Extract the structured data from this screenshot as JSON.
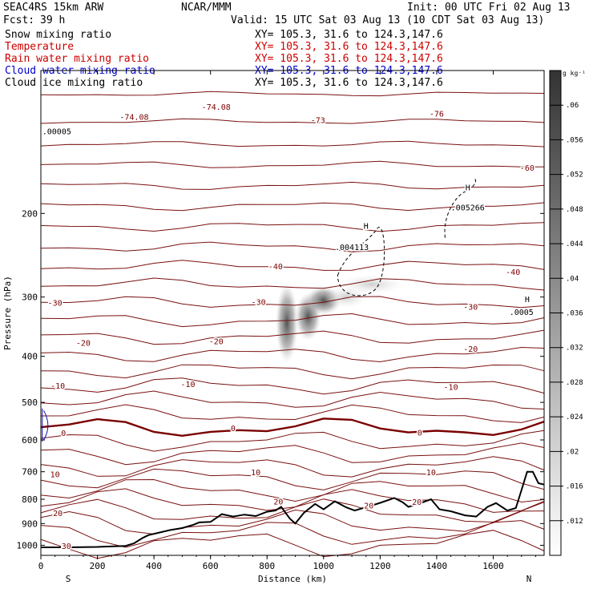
{
  "header": {
    "model": "SEAC4RS 15km ARW",
    "center": "NCAR/MMM",
    "init": "Init: 00 UTC Fri 02 Aug 13",
    "fcst_label": "Fcst:",
    "fcst_value": "39 h",
    "valid": "Valid: 15 UTC Sat 03 Aug 13 (10 CDT Sat 03 Aug 13)"
  },
  "fields": [
    {
      "name": "Snow mixing ratio",
      "xy": "XY= 105.3, 31.6 to 124.3,147.6",
      "color": "#000000"
    },
    {
      "name": "Temperature",
      "xy": "XY= 105.3, 31.6 to 124.3,147.6",
      "color": "#cc0000"
    },
    {
      "name": "Rain water mixing ratio",
      "xy": "XY= 105.3, 31.6 to 124.3,147.6",
      "color": "#cc0000"
    },
    {
      "name": "Cloud water mixing ratio",
      "xy": "XY= 105.3, 31.6 to 124.3,147.6",
      "color": "#0000cc"
    },
    {
      "name": "Cloud ice mixing ratio",
      "xy": "XY= 105.3, 31.6 to 124.3,147.6",
      "color": "#000000"
    }
  ],
  "chart_data": {
    "type": "contour",
    "xlabel": "Distance (km)",
    "ylabel": "Pressure (hPa)",
    "xlim": [
      0,
      1780
    ],
    "ylim": [
      1050,
      100
    ],
    "x_ticks": [
      0,
      200,
      400,
      600,
      800,
      1000,
      1200,
      1400,
      1600
    ],
    "y_ticks": [
      200,
      300,
      400,
      500,
      600,
      700,
      800,
      900,
      1000
    ],
    "x_end_labels": {
      "left": "S",
      "right": "N"
    },
    "colorbar": {
      "unit": "g kg⁻¹",
      "ticks": [
        ".012",
        ".016",
        ".02",
        ".024",
        ".028",
        ".032",
        ".036",
        ".04",
        ".044",
        ".048",
        ".052",
        ".056",
        ".06"
      ]
    },
    "temperature_labels": [
      {
        "text": "-60",
        "x": 1720,
        "p": 160
      },
      {
        "text": "-40",
        "x": 830,
        "p": 258
      },
      {
        "text": "-40",
        "x": 1670,
        "p": 265
      },
      {
        "text": "-30",
        "x": 50,
        "p": 308
      },
      {
        "text": "-30",
        "x": 770,
        "p": 307
      },
      {
        "text": "-30",
        "x": 1520,
        "p": 314
      },
      {
        "text": "-20",
        "x": 150,
        "p": 374
      },
      {
        "text": "-20",
        "x": 620,
        "p": 371
      },
      {
        "text": "-20",
        "x": 1520,
        "p": 385
      },
      {
        "text": "-10",
        "x": 60,
        "p": 461
      },
      {
        "text": "-10",
        "x": 520,
        "p": 457
      },
      {
        "text": "-10",
        "x": 1450,
        "p": 463
      },
      {
        "text": "0",
        "x": 80,
        "p": 579
      },
      {
        "text": "0",
        "x": 680,
        "p": 566
      },
      {
        "text": "0",
        "x": 1340,
        "p": 578
      },
      {
        "text": "10",
        "x": 50,
        "p": 708
      },
      {
        "text": "10",
        "x": 760,
        "p": 701
      },
      {
        "text": "10",
        "x": 1380,
        "p": 701
      },
      {
        "text": "20",
        "x": 60,
        "p": 855
      },
      {
        "text": "20",
        "x": 840,
        "p": 807
      },
      {
        "text": "20",
        "x": 1160,
        "p": 823
      },
      {
        "text": "20",
        "x": 1330,
        "p": 810
      },
      {
        "text": "30",
        "x": 90,
        "p": 1003
      }
    ],
    "extrema_labels": [
      {
        "text": "-74.08",
        "x": 620,
        "p": 119
      },
      {
        "text": "-74.08",
        "x": 330,
        "p": 125
      },
      {
        "text": "-73",
        "x": 980,
        "p": 127
      },
      {
        "text": "-76",
        "x": 1400,
        "p": 123
      },
      {
        "text": ".00005",
        "x": 5,
        "p": 134
      },
      {
        "text": "H",
        "x": 1150,
        "p": 212
      },
      {
        "text": ".004113",
        "x": 1100,
        "p": 235
      },
      {
        "text": "H",
        "x": 1510,
        "p": 176
      },
      {
        "text": ".005266",
        "x": 1510,
        "p": 194
      },
      {
        "text": "H",
        "x": 1720,
        "p": 303
      },
      {
        "text": ".0005",
        "x": 1700,
        "p": 322
      }
    ]
  }
}
